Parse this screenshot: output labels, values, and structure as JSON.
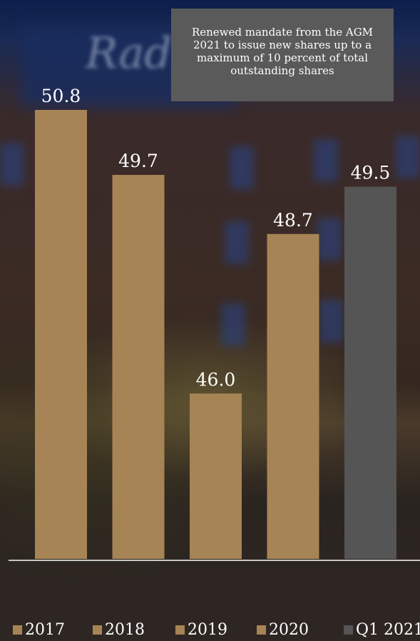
{
  "annotation": "Renewed mandate from the AGM 2021 to issue new shares up to a maximum of 10 percent of total outstanding shares",
  "colors": {
    "bar": "#a78455",
    "highlight": "#555555",
    "axis": "#c8c8c8",
    "label": "#ffffff"
  },
  "chart_data": {
    "type": "bar",
    "categories": [
      "2017",
      "2018",
      "2019",
      "2020",
      "Q1 2021"
    ],
    "values": [
      50.8,
      49.7,
      46.0,
      48.7,
      49.5
    ],
    "data_labels": [
      "50.8",
      "49.7",
      "46.0",
      "48.7",
      "49.5"
    ],
    "bar_colors": [
      "#a78455",
      "#a78455",
      "#a78455",
      "#a78455",
      "#555555"
    ],
    "legend": [
      "2017",
      "2018",
      "2019",
      "2020",
      "Q1 2021"
    ],
    "legend_position": "bottom",
    "grid": false,
    "title": "",
    "xlabel": "",
    "ylabel": ""
  }
}
